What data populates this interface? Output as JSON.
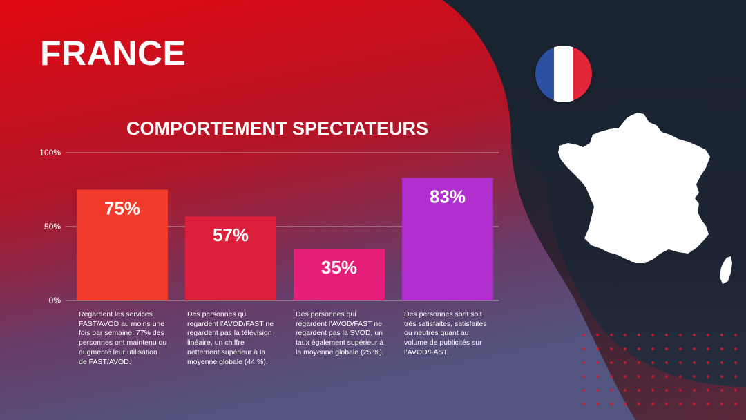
{
  "header": {
    "title": "FRANCE"
  },
  "colors": {
    "bar_1": "#f23b2b",
    "bar_2": "#dc1f3a",
    "bar_3": "#e51f79",
    "bar_4": "#b22fcf",
    "flag_blue": "#2b4fa3",
    "flag_white": "#ffffff",
    "flag_red": "#e3273a",
    "map_fill": "#ffffff"
  },
  "icons": {
    "flag": "france-flag-icon",
    "map": "france-map-icon"
  },
  "chart_data": {
    "type": "bar",
    "title": "COMPORTEMENT SPECTATEURS",
    "xlabel": "",
    "ylabel": "",
    "ylim": [
      0,
      100
    ],
    "yticks": [
      "0%",
      "50%",
      "100%"
    ],
    "grid": true,
    "categories": [
      "Regardent les services FAST/AVOD au moins une fois par semaine: 77% des personnes ont maintenu ou augmenté leur utilisation de FAST/AVOD.",
      "Des personnes qui regardent l’AVOD/FAST ne regardent pas la télévision linéaire, un chiffre nettement supérieur à la moyenne globale (44 %).",
      "Des personnes qui regardent l’AVOD/FAST ne regardent pas la SVOD, un taux également supérieur à la moyenne globale (25 %).",
      "Des personnes sont soit très satisfaites, satisfaites ou neutres quant au volume de publicités sur l’AVOD/FAST."
    ],
    "values": [
      75,
      57,
      35,
      83
    ],
    "data_labels": [
      "75%",
      "57%",
      "35%",
      "83%"
    ]
  }
}
